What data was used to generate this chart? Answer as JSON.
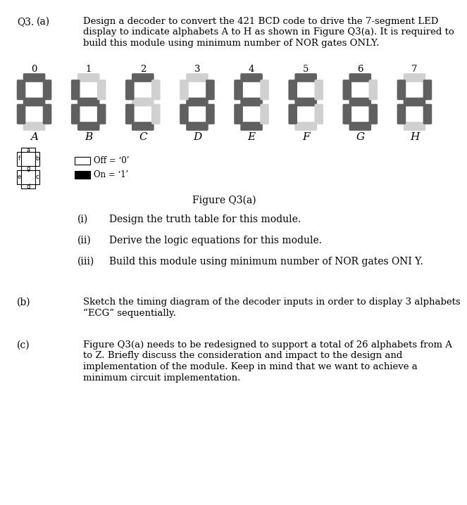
{
  "title_q": "Q3.",
  "part_a_label": "(a)",
  "part_a_text_lines": [
    "Design a decoder to convert the 421 BCD code to drive the 7-segment LED",
    "display to indicate alphabets A to H as shown in Figure Q3(a). It is required to",
    "build this module using minimum number of NOR gates ONLY."
  ],
  "display_numbers": [
    "0",
    "1",
    "2",
    "3",
    "4",
    "5",
    "6",
    "7"
  ],
  "display_letters": [
    "A",
    "B",
    "C",
    "D",
    "E",
    "F",
    "G",
    "H"
  ],
  "segments_on_color": "#606060",
  "segments_off_color": "#d0d0d0",
  "background_color": "#ffffff",
  "figure_caption": "Figure Q3(a)",
  "sub_items": [
    [
      "(i)",
      "Design the truth table for this module."
    ],
    [
      "(ii)",
      "Derive the logic equations for this module."
    ],
    [
      "(iii)",
      "Build this module using minimum number of NOR gates ONI Y."
    ]
  ],
  "part_b_label": "(b)",
  "part_b_text_lines": [
    "Sketch the timing diagram of the decoder inputs in order to display 3 alphabets",
    "“ECG” sequentially."
  ],
  "part_c_label": "(c)",
  "part_c_text_lines": [
    "Figure Q3(a) needs to be redesigned to support a total of 26 alphabets from A",
    "to Z. Briefly discuss the consideration and impact to the design and",
    "implementation of the module. Keep in mind that we want to achieve a",
    "minimum circuit implementation."
  ],
  "off_label": "Off = ‘0’",
  "on_label": "On = ‘1’",
  "segment_states": [
    {
      "a": 1,
      "b": 1,
      "c": 1,
      "d": 0,
      "e": 1,
      "f": 1,
      "g": 1
    },
    {
      "a": 0,
      "b": 0,
      "c": 1,
      "d": 1,
      "e": 1,
      "f": 1,
      "g": 1
    },
    {
      "a": 1,
      "b": 0,
      "c": 0,
      "d": 1,
      "e": 1,
      "f": 1,
      "g": 0
    },
    {
      "a": 0,
      "b": 1,
      "c": 1,
      "d": 1,
      "e": 1,
      "f": 0,
      "g": 1
    },
    {
      "a": 1,
      "b": 0,
      "c": 0,
      "d": 1,
      "e": 1,
      "f": 1,
      "g": 1
    },
    {
      "a": 1,
      "b": 0,
      "c": 0,
      "d": 0,
      "e": 1,
      "f": 1,
      "g": 1
    },
    {
      "a": 1,
      "b": 0,
      "c": 1,
      "d": 1,
      "e": 1,
      "f": 1,
      "g": 1
    },
    {
      "a": 0,
      "b": 1,
      "c": 1,
      "d": 0,
      "e": 1,
      "f": 1,
      "g": 1
    }
  ]
}
